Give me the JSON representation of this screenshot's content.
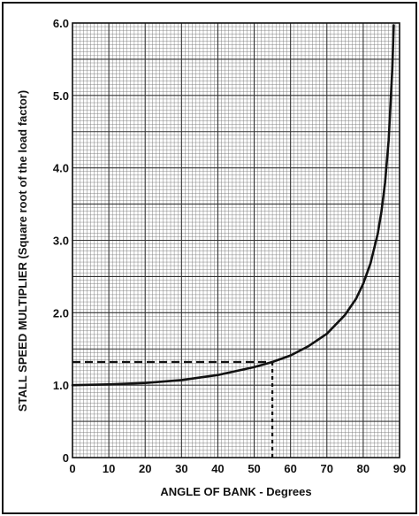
{
  "chart_data": {
    "type": "line",
    "xlabel": "ANGLE OF BANK - Degrees",
    "ylabel": "STALL SPEED MULTIPLIER (Square root of the load factor)",
    "xlim": [
      0,
      90
    ],
    "ylim": [
      0,
      6
    ],
    "x_ticks": [
      "0",
      "10",
      "20",
      "30",
      "40",
      "50",
      "60",
      "70",
      "80",
      "90"
    ],
    "y_ticks": [
      "0",
      "1.0",
      "2.0",
      "3.0",
      "4.0",
      "5.0",
      "6.0"
    ],
    "grid": true,
    "series": [
      {
        "x": [
          0,
          10,
          20,
          30,
          40,
          50,
          55,
          60,
          65,
          70,
          75,
          78,
          80,
          82,
          84,
          85,
          86,
          87,
          88,
          88.4
        ],
        "y": [
          1.0,
          1.01,
          1.03,
          1.07,
          1.14,
          1.25,
          1.32,
          1.41,
          1.54,
          1.71,
          1.97,
          2.19,
          2.4,
          2.68,
          3.09,
          3.39,
          3.79,
          4.38,
          5.36,
          5.97
        ]
      }
    ],
    "annotations": [
      {
        "type": "dashed-guide",
        "x": 55,
        "y": 1.32
      }
    ]
  },
  "colors": {
    "ink": "#111111",
    "grid_major": "#333333",
    "grid_minor": "#777777",
    "background": "#ffffff"
  }
}
